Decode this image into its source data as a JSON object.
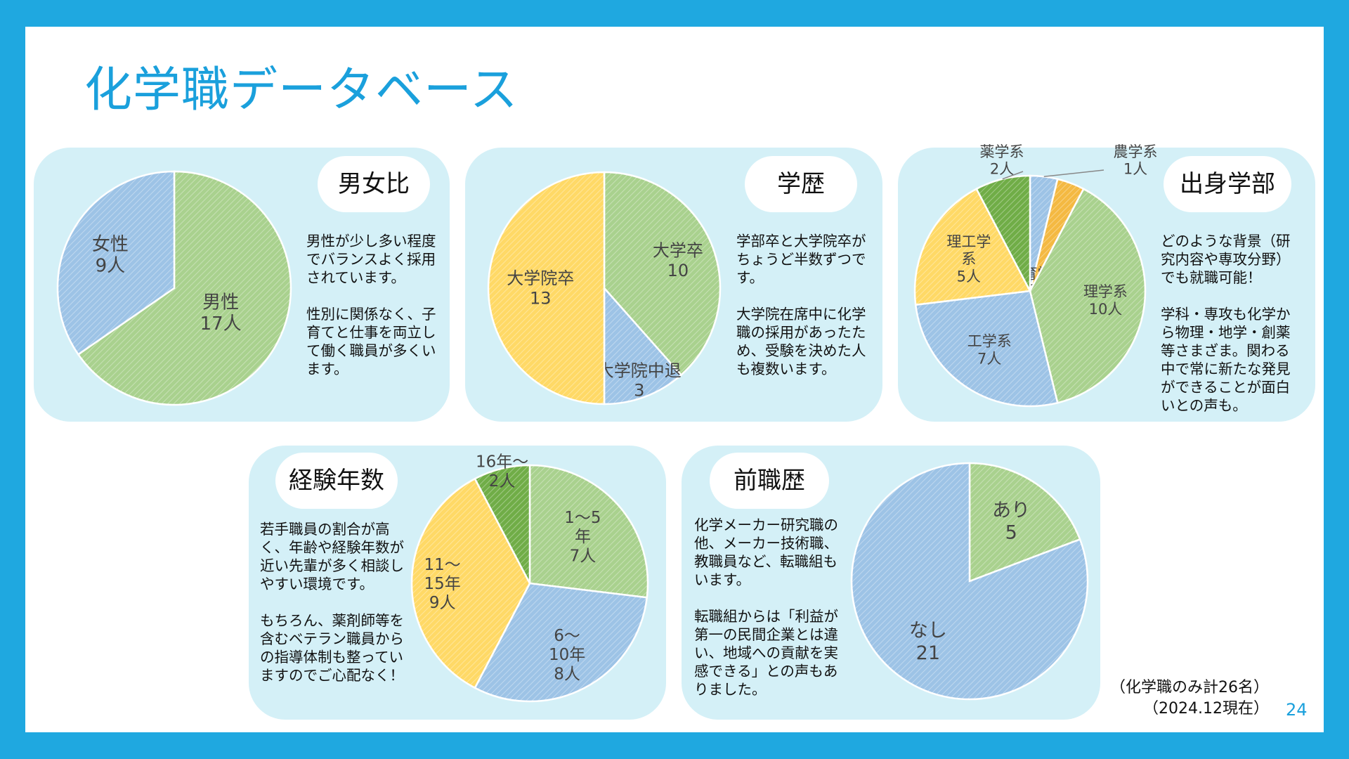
{
  "title": "化学職データベース",
  "page_number": "24",
  "footnote": [
    "（化学職のみ計26名）",
    "（2024.12現在）"
  ],
  "colors": {
    "green": "#a9d18e",
    "blue": "#9dc3e6",
    "yellow": "#ffd966",
    "darkgreen": "#70ad47",
    "gold": "#f4b942"
  },
  "panels": {
    "gender": {
      "heading": "男女比",
      "desc": [
        "男性が少し多い程度でバランスよく採用されています。",
        "性別に関係なく、子育てと仕事を両立して働く職員が多くいます。"
      ]
    },
    "education": {
      "heading": "学歴",
      "desc": [
        "学部卒と大学院卒がちょうど半数ずつです。",
        "大学院在席中に化学職の採用があったため、受験を決めた人も複数います。"
      ]
    },
    "faculty": {
      "heading": "出身学部",
      "desc": [
        "どのような背景（研究内容や専攻分野）でも就職可能！",
        "学科・専攻も化学から物理・地学・創薬等さまざま。関わる中で常に新たな発見ができることが面白いとの声も。"
      ]
    },
    "experience": {
      "heading": "経験年数",
      "desc": [
        "若手職員の割合が高く、年齢や経験年数が近い先輩が多く相談しやすい環境です。",
        "もちろん、薬剤師等を含むベテラン職員からの指導体制も整っていますのでご心配なく！"
      ]
    },
    "career": {
      "heading": "前職歴",
      "desc": [
        "化学メーカー研究職の他、メーカー技術職、教職員など、転職組もいます。",
        "転職組からは「利益が第一の民間企業とは違い、地域への貢献を実感できる」との声もありました。"
      ]
    }
  },
  "chart_data": [
    {
      "type": "pie",
      "id": "gender",
      "categories": [
        "男性",
        "女性"
      ],
      "values": [
        17,
        9
      ],
      "labels": [
        [
          "男性",
          "17人"
        ],
        [
          "女性",
          "9人"
        ]
      ],
      "colors": [
        "#a9d18e",
        "#9dc3e6"
      ]
    },
    {
      "type": "pie",
      "id": "education",
      "categories": [
        "大学卒",
        "大学院中退",
        "大学院卒"
      ],
      "values": [
        10,
        3,
        13
      ],
      "labels": [
        [
          "大学卒",
          "10"
        ],
        [
          "大学院中退",
          "3"
        ],
        [
          "大学院卒",
          "13"
        ]
      ],
      "colors": [
        "#a9d18e",
        "#9dc3e6",
        "#ffd966"
      ]
    },
    {
      "type": "pie",
      "id": "faculty",
      "categories": [
        "農学系",
        "教育学系",
        "理学系",
        "工学系",
        "理工学系",
        "薬学系"
      ],
      "values": [
        1,
        1,
        10,
        7,
        5,
        2
      ],
      "labels": [
        [
          "農学系",
          "1人"
        ],
        [
          "教育学",
          "系",
          "1人"
        ],
        [
          "理学系",
          "10人"
        ],
        [
          "工学系",
          "7人"
        ],
        [
          "理工学",
          "系",
          "5人"
        ],
        [
          "薬学系",
          "2人"
        ]
      ],
      "colors": [
        "#9dc3e6",
        "#f4b942",
        "#a9d18e",
        "#9dc3e6",
        "#ffd966",
        "#70ad47"
      ]
    },
    {
      "type": "pie",
      "id": "experience",
      "categories": [
        "1〜5年",
        "6〜10年",
        "11〜15年",
        "16年〜"
      ],
      "values": [
        7,
        8,
        9,
        2
      ],
      "labels": [
        [
          "1〜5",
          "年",
          "7人"
        ],
        [
          "6〜",
          "10年",
          "8人"
        ],
        [
          "11〜",
          "15年",
          "9人"
        ],
        [
          "16年〜",
          "2人"
        ]
      ],
      "colors": [
        "#a9d18e",
        "#9dc3e6",
        "#ffd966",
        "#70ad47"
      ]
    },
    {
      "type": "pie",
      "id": "career",
      "categories": [
        "あり",
        "なし"
      ],
      "values": [
        5,
        21
      ],
      "labels": [
        [
          "あり",
          "5"
        ],
        [
          "なし",
          "21"
        ]
      ],
      "colors": [
        "#a9d18e",
        "#9dc3e6"
      ]
    }
  ]
}
